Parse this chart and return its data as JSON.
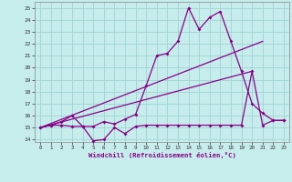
{
  "xlabel": "Windchill (Refroidissement éolien,°C)",
  "xlim": [
    -0.5,
    23.5
  ],
  "ylim": [
    13.8,
    25.5
  ],
  "yticks": [
    14,
    15,
    16,
    17,
    18,
    19,
    20,
    21,
    22,
    23,
    24,
    25
  ],
  "xticks": [
    0,
    1,
    2,
    3,
    4,
    5,
    6,
    7,
    8,
    9,
    10,
    11,
    12,
    13,
    14,
    15,
    16,
    17,
    18,
    19,
    20,
    21,
    22,
    23
  ],
  "bg_color": "#c6ecec",
  "grid_color": "#a0d4d4",
  "line_color": "#880088",
  "flat_x": [
    0,
    1,
    2,
    3,
    4,
    5,
    6,
    7,
    8,
    9,
    10,
    11,
    12,
    13,
    14,
    15,
    16,
    17,
    18,
    19,
    20,
    21,
    22,
    23
  ],
  "flat_y": [
    15.0,
    15.2,
    15.2,
    15.1,
    15.1,
    13.9,
    14.0,
    15.0,
    14.5,
    15.1,
    15.2,
    15.2,
    15.2,
    15.2,
    15.2,
    15.2,
    15.2,
    15.2,
    15.2,
    15.2,
    19.7,
    15.2,
    15.6,
    15.6
  ],
  "data_x": [
    0,
    1,
    2,
    3,
    4,
    5,
    6,
    7,
    8,
    9,
    10,
    11,
    12,
    13,
    14,
    15,
    16,
    17,
    18,
    19,
    20,
    21,
    22,
    23
  ],
  "data_y": [
    15.0,
    15.2,
    15.5,
    16.0,
    15.1,
    15.1,
    15.5,
    15.3,
    15.7,
    16.1,
    18.5,
    21.0,
    21.2,
    22.2,
    25.0,
    23.2,
    24.2,
    24.7,
    22.2,
    19.7,
    17.0,
    16.2,
    15.6,
    15.6
  ],
  "trend1_x": [
    0,
    21
  ],
  "trend1_y": [
    15.0,
    22.2
  ],
  "trend2_x": [
    0,
    20
  ],
  "trend2_y": [
    15.0,
    19.7
  ]
}
